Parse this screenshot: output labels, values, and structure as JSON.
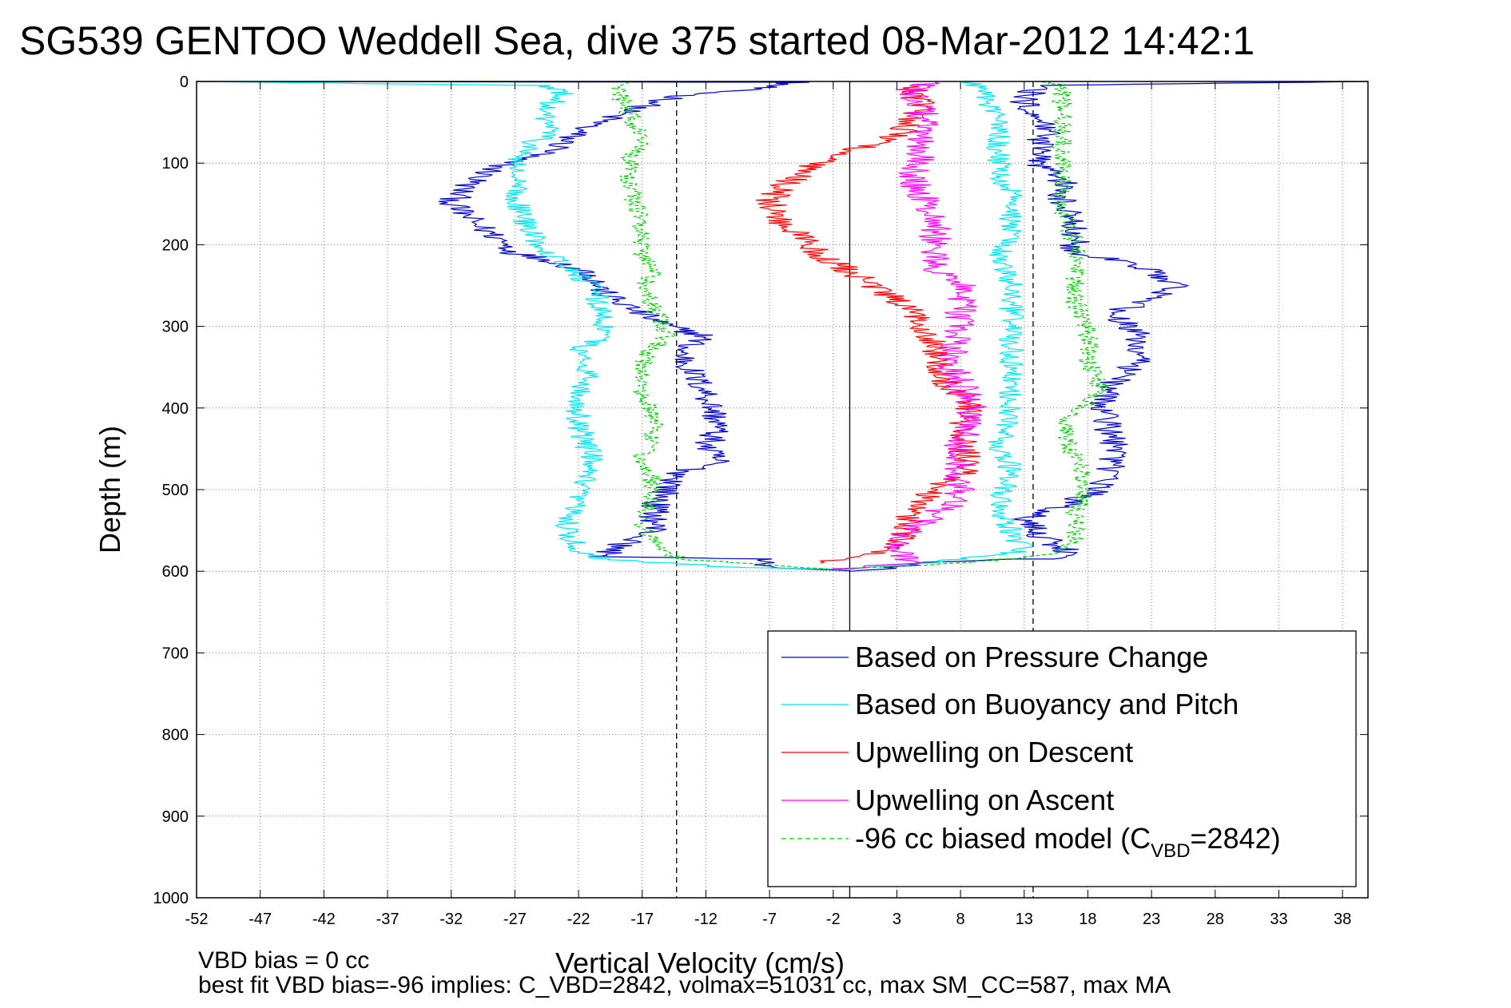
{
  "chart_data": {
    "type": "line",
    "title": "SG539 GENTOO Weddell Sea, dive 375 started 08-Mar-2012 14:42:1",
    "xlabel": "Vertical Velocity (cm/s)",
    "ylabel": "Depth (m)",
    "xlim": [
      -52,
      40
    ],
    "ylim": [
      0,
      1000
    ],
    "y_reversed": true,
    "x_ticks": [
      -52,
      -47,
      -42,
      -37,
      -32,
      -27,
      -22,
      -17,
      -12,
      -7,
      -2,
      3,
      8,
      13,
      18,
      23,
      28,
      33,
      38
    ],
    "y_ticks": [
      0,
      100,
      200,
      300,
      400,
      500,
      600,
      700,
      800,
      900,
      1000
    ],
    "grid": true,
    "legend_position": "bottom-right",
    "reference_lines": [
      {
        "style": "solid",
        "color": "#000000",
        "x": -0.7
      },
      {
        "style": "dashed",
        "color": "#000000",
        "x": -14.3
      },
      {
        "style": "dashed",
        "color": "#000000",
        "x": 13.7
      }
    ],
    "series": [
      {
        "name": "Based on Pressure Change",
        "color": "#0000cc",
        "style": "solid",
        "noise": 1.2,
        "points": [
          [
            -52,
            0
          ],
          [
            -5,
            1
          ],
          [
            -8,
            8
          ],
          [
            -14,
            18
          ],
          [
            -18,
            35
          ],
          [
            -22,
            60
          ],
          [
            -24,
            85
          ],
          [
            -27,
            95
          ],
          [
            -29,
            110
          ],
          [
            -31,
            130
          ],
          [
            -32,
            150
          ],
          [
            -30,
            175
          ],
          [
            -28,
            195
          ],
          [
            -27,
            210
          ],
          [
            -24,
            220
          ],
          [
            -21,
            235
          ],
          [
            -20,
            260
          ],
          [
            -17,
            285
          ],
          [
            -15,
            300
          ],
          [
            -12,
            312
          ],
          [
            -14,
            330
          ],
          [
            -13,
            360
          ],
          [
            -12,
            380
          ],
          [
            -11,
            420
          ],
          [
            -12,
            450
          ],
          [
            -11,
            465
          ],
          [
            -14,
            480
          ],
          [
            -16,
            520
          ],
          [
            -16,
            550
          ],
          [
            -19,
            570
          ],
          [
            -20,
            582
          ],
          [
            -8,
            585
          ],
          [
            -7,
            595
          ],
          [
            0,
            600
          ],
          [
            5,
            590
          ],
          [
            11,
            585
          ],
          [
            15,
            585
          ],
          [
            17,
            580
          ],
          [
            14,
            555
          ],
          [
            13,
            535
          ],
          [
            16,
            520
          ],
          [
            19,
            500
          ],
          [
            20,
            470
          ],
          [
            20,
            440
          ],
          [
            19,
            400
          ],
          [
            20,
            370
          ],
          [
            22,
            340
          ],
          [
            22,
            310
          ],
          [
            20,
            285
          ],
          [
            25,
            250
          ],
          [
            22,
            225
          ],
          [
            17,
            210
          ],
          [
            17,
            180
          ],
          [
            16,
            150
          ],
          [
            16,
            120
          ],
          [
            14,
            100
          ],
          [
            14,
            80
          ],
          [
            15,
            55
          ],
          [
            13,
            25
          ],
          [
            14,
            5
          ],
          [
            40,
            0
          ]
        ]
      },
      {
        "name": "Based on Buoyancy and Pitch",
        "color": "#00e5ee",
        "style": "solid",
        "noise": 1.0,
        "points": [
          [
            -52,
            0
          ],
          [
            -25,
            5
          ],
          [
            -23,
            15
          ],
          [
            -25,
            35
          ],
          [
            -24,
            60
          ],
          [
            -26,
            80
          ],
          [
            -27,
            100
          ],
          [
            -27,
            140
          ],
          [
            -26,
            180
          ],
          [
            -25,
            200
          ],
          [
            -23,
            225
          ],
          [
            -21,
            250
          ],
          [
            -20,
            290
          ],
          [
            -20,
            310
          ],
          [
            -22,
            330
          ],
          [
            -21,
            360
          ],
          [
            -22,
            380
          ],
          [
            -22,
            420
          ],
          [
            -21,
            460
          ],
          [
            -22,
            500
          ],
          [
            -23,
            550
          ],
          [
            -22,
            575
          ],
          [
            -20,
            585
          ],
          [
            -10,
            595
          ],
          [
            0,
            598
          ],
          [
            8,
            585
          ],
          [
            13,
            575
          ],
          [
            12,
            555
          ],
          [
            11,
            520
          ],
          [
            12,
            480
          ],
          [
            11,
            440
          ],
          [
            12,
            400
          ],
          [
            12,
            360
          ],
          [
            12,
            320
          ],
          [
            12,
            290
          ],
          [
            12,
            250
          ],
          [
            11,
            220
          ],
          [
            12,
            180
          ],
          [
            12,
            140
          ],
          [
            11,
            110
          ],
          [
            11,
            60
          ],
          [
            10,
            15
          ],
          [
            9,
            0
          ]
        ]
      },
      {
        "name": "Upwelling on Descent",
        "color": "#ff0000",
        "style": "solid",
        "noise": 1.3,
        "points": [
          [
            4,
            5
          ],
          [
            5,
            30
          ],
          [
            4,
            55
          ],
          [
            2,
            75
          ],
          [
            -2,
            90
          ],
          [
            -4,
            105
          ],
          [
            -6,
            130
          ],
          [
            -7,
            150
          ],
          [
            -6,
            175
          ],
          [
            -4,
            195
          ],
          [
            -3,
            215
          ],
          [
            -1,
            230
          ],
          [
            1,
            250
          ],
          [
            3,
            270
          ],
          [
            5,
            295
          ],
          [
            6,
            320
          ],
          [
            6,
            340
          ],
          [
            7,
            370
          ],
          [
            9,
            395
          ],
          [
            8,
            420
          ],
          [
            8,
            450
          ],
          [
            9,
            470
          ],
          [
            7,
            490
          ],
          [
            5,
            510
          ],
          [
            4,
            530
          ],
          [
            4,
            550
          ],
          [
            2,
            575
          ],
          [
            -3,
            590
          ]
        ]
      },
      {
        "name": "Upwelling on Ascent",
        "color": "#ff00ff",
        "style": "solid",
        "noise": 1.3,
        "points": [
          [
            -2,
            598
          ],
          [
            4,
            590
          ],
          [
            3,
            575
          ],
          [
            3,
            560
          ],
          [
            5,
            540
          ],
          [
            7,
            520
          ],
          [
            8,
            500
          ],
          [
            8,
            470
          ],
          [
            8,
            440
          ],
          [
            9,
            400
          ],
          [
            8,
            370
          ],
          [
            7,
            340
          ],
          [
            8,
            310
          ],
          [
            8,
            280
          ],
          [
            8,
            250
          ],
          [
            6,
            230
          ],
          [
            6,
            200
          ],
          [
            6,
            170
          ],
          [
            5,
            140
          ],
          [
            4,
            115
          ],
          [
            5,
            90
          ],
          [
            5,
            60
          ],
          [
            5,
            35
          ],
          [
            4,
            10
          ],
          [
            6,
            0
          ]
        ]
      },
      {
        "name": "-96 cc biased model (C",
        "name_subscript": "VBD",
        "name_suffix": "=2842)",
        "color": "#00cc00",
        "style": "dashed",
        "noise": 0.8,
        "points": [
          [
            -18,
            0
          ],
          [
            -19,
            10
          ],
          [
            -18,
            40
          ],
          [
            -17,
            70
          ],
          [
            -18,
            95
          ],
          [
            -18,
            130
          ],
          [
            -17,
            170
          ],
          [
            -17,
            210
          ],
          [
            -16,
            235
          ],
          [
            -17,
            250
          ],
          [
            -16,
            280
          ],
          [
            -15,
            310
          ],
          [
            -17,
            340
          ],
          [
            -17,
            380
          ],
          [
            -16,
            420
          ],
          [
            -17,
            460
          ],
          [
            -16,
            500
          ],
          [
            -17,
            540
          ],
          [
            -16,
            570
          ],
          [
            -14,
            585
          ],
          [
            -2,
            598
          ],
          [
            8,
            590
          ],
          [
            15,
            580
          ],
          [
            17,
            560
          ],
          [
            17,
            530
          ],
          [
            18,
            500
          ],
          [
            17,
            460
          ],
          [
            16,
            420
          ],
          [
            19,
            380
          ],
          [
            18,
            340
          ],
          [
            18,
            300
          ],
          [
            17,
            270
          ],
          [
            17,
            240
          ],
          [
            17,
            200
          ],
          [
            16,
            160
          ],
          [
            16,
            110
          ],
          [
            16,
            70
          ],
          [
            16,
            30
          ],
          [
            16,
            5
          ],
          [
            14,
            0
          ]
        ]
      }
    ],
    "footnotes": [
      "VBD bias = 0 cc",
      "best fit VBD bias=-96 implies: C_VBD=2842, volmax=51031 cc, max SM_CC=587, max MA"
    ]
  }
}
